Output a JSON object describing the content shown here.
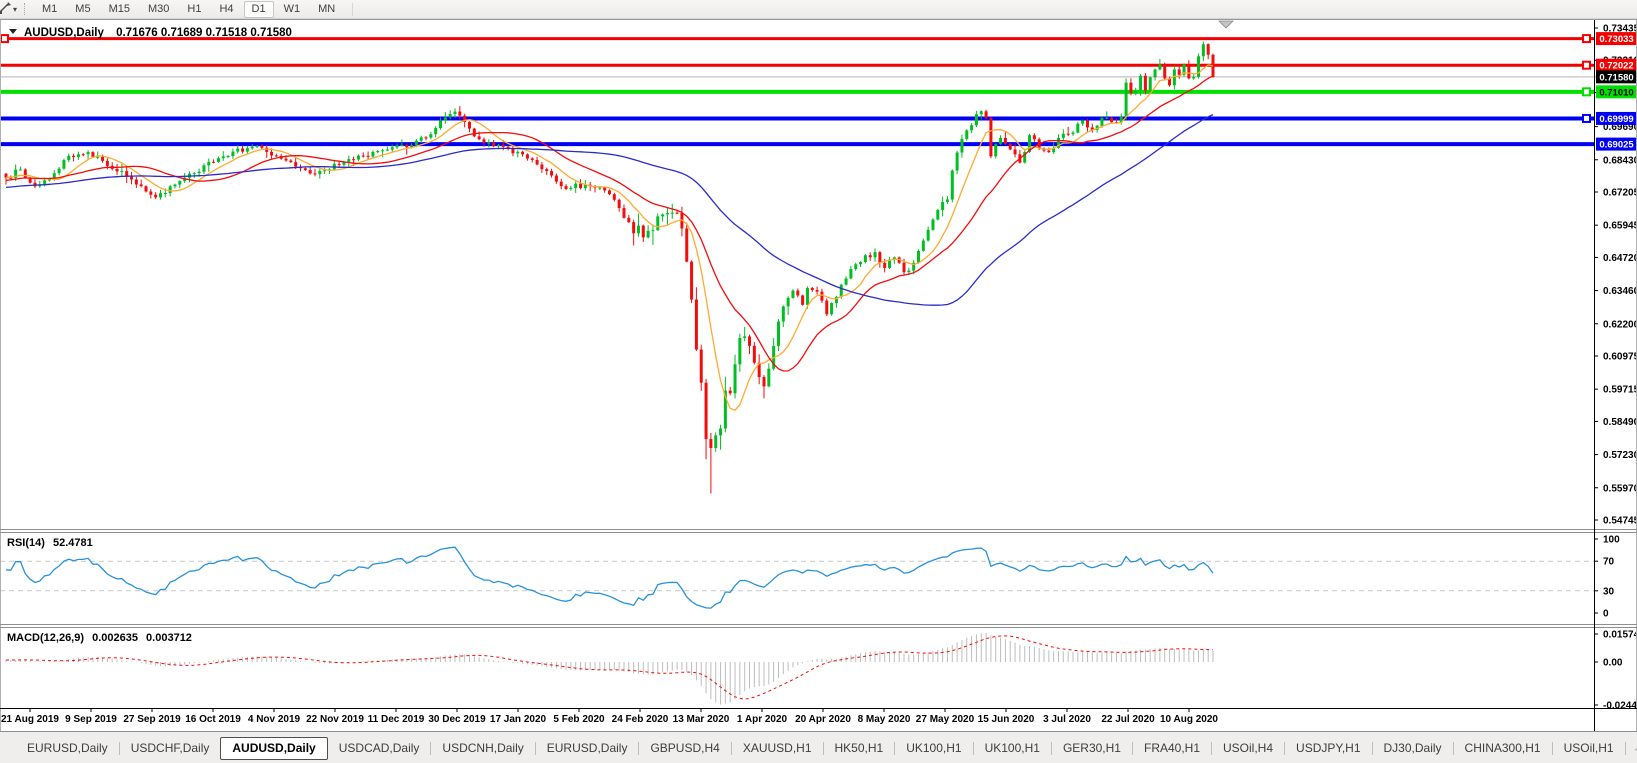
{
  "toolbar": {
    "left_icon": "line-tool-icon",
    "dropdown_caret": "▾",
    "timeframes": [
      "M1",
      "M5",
      "M15",
      "M30",
      "H1",
      "H4",
      "D1",
      "W1",
      "MN"
    ],
    "active_timeframe": "D1"
  },
  "chart_window": {
    "collapse_caret": "▼",
    "title": "AUDUSD,Daily",
    "ohlc_line": "0.71676 0.71689 0.71518 0.71580"
  },
  "chart_data": {
    "type": "candlestick",
    "symbol": "AUDUSD",
    "period": "Daily",
    "ohlc": {
      "open": "0.71676",
      "high": "0.71689",
      "low": "0.71518",
      "close": "0.71580"
    },
    "x_labels": [
      "21 Aug 2019",
      "9 Sep 2019",
      "27 Sep 2019",
      "16 Oct 2019",
      "4 Nov 2019",
      "22 Nov 2019",
      "11 Dec 2019",
      "30 Dec 2019",
      "17 Jan 2020",
      "5 Feb 2020",
      "24 Feb 2020",
      "13 Mar 2020",
      "1 Apr 2020",
      "20 Apr 2020",
      "8 May 2020",
      "27 May 2020",
      "15 Jun 2020",
      "3 Jul 2020",
      "22 Jul 2020",
      "10 Aug 2020"
    ],
    "y_ticks": [
      {
        "v": 0.73435,
        "label": "0.73435"
      },
      {
        "v": 0.7221,
        "label": "0.72210"
      },
      {
        "v": 0.70985,
        "label": "0.70985"
      },
      {
        "v": 0.6969,
        "label": "0.69690"
      },
      {
        "v": 0.6843,
        "label": "0.68430"
      },
      {
        "v": 0.67205,
        "label": "0.67205"
      },
      {
        "v": 0.65945,
        "label": "0.65945"
      },
      {
        "v": 0.6472,
        "label": "0.64720"
      },
      {
        "v": 0.6346,
        "label": "0.63460"
      },
      {
        "v": 0.622,
        "label": "0.62200"
      },
      {
        "v": 0.60975,
        "label": "0.60975"
      },
      {
        "v": 0.59715,
        "label": "0.59715"
      },
      {
        "v": 0.5849,
        "label": "0.58490"
      },
      {
        "v": 0.5723,
        "label": "0.57230"
      },
      {
        "v": 0.5597,
        "label": "0.55970"
      },
      {
        "v": 0.54745,
        "label": "0.54745"
      }
    ],
    "plot": {
      "price_top": 0.73701,
      "price_bottom": 0.54403
    },
    "levels": [
      {
        "price": 0.73033,
        "label": "0.73033",
        "color": "#f40000",
        "text_color": "#ffffff",
        "width": 3,
        "left_handle": true,
        "right_handle": true
      },
      {
        "price": 0.72022,
        "label": "0.72022",
        "color": "#f40000",
        "text_color": "#ffffff",
        "width": 3,
        "left_handle": false,
        "right_handle": true
      },
      {
        "price": 0.7101,
        "label": "0.71010",
        "color": "#00e000",
        "text_color": "#000000",
        "width": 4,
        "left_handle": false,
        "right_handle": true
      },
      {
        "price": 0.69999,
        "label": "0.69999",
        "color": "#0000f4",
        "text_color": "#ffffff",
        "width": 4,
        "left_handle": false,
        "right_handle": true
      },
      {
        "price": 0.69025,
        "label": "0.69025",
        "color": "#0000f4",
        "text_color": "#ffffff",
        "width": 4,
        "left_handle": false,
        "right_handle": false
      }
    ],
    "current_price": {
      "value": 0.7158,
      "label": "0.71580",
      "line_color": "#b4b4b4",
      "tag_bg": "#000000",
      "tag_text": "#ffffff"
    },
    "candles_count": 251,
    "candle_colors": {
      "up": "#00be23",
      "down": "#f20d0d"
    },
    "series_anchors": [
      [
        0,
        0.6775
      ],
      [
        3,
        0.6806
      ],
      [
        6,
        0.6742
      ],
      [
        9,
        0.6768
      ],
      [
        13,
        0.6858
      ],
      [
        17,
        0.6872
      ],
      [
        21,
        0.682
      ],
      [
        26,
        0.6768
      ],
      [
        31,
        0.67
      ],
      [
        36,
        0.6762
      ],
      [
        39,
        0.6792
      ],
      [
        45,
        0.6856
      ],
      [
        52,
        0.6896
      ],
      [
        58,
        0.684
      ],
      [
        64,
        0.6788
      ],
      [
        70,
        0.6836
      ],
      [
        77,
        0.6876
      ],
      [
        84,
        0.6898
      ],
      [
        88,
        0.694
      ],
      [
        91,
        0.7004
      ],
      [
        93,
        0.7026
      ],
      [
        97,
        0.6932
      ],
      [
        103,
        0.6892
      ],
      [
        108,
        0.6848
      ],
      [
        112,
        0.68
      ],
      [
        116,
        0.6732
      ],
      [
        120,
        0.6748
      ],
      [
        125,
        0.6712
      ],
      [
        129,
        0.6606
      ],
      [
        132,
        0.6548
      ],
      [
        135,
        0.6628
      ],
      [
        138,
        0.6642
      ],
      [
        140,
        0.6582
      ],
      [
        142,
        0.6312
      ],
      [
        143,
        0.6122
      ],
      [
        144,
        0.5996
      ],
      [
        145,
        0.5782
      ],
      [
        146,
        0.5748
      ],
      [
        147,
        0.5796
      ],
      [
        148,
        0.5822
      ],
      [
        149,
        0.5966
      ],
      [
        150,
        0.5956
      ],
      [
        151,
        0.6066
      ],
      [
        152,
        0.6166
      ],
      [
        153,
        0.6172
      ],
      [
        154,
        0.6136
      ],
      [
        155,
        0.6072
      ],
      [
        157,
        0.5982
      ],
      [
        159,
        0.6136
      ],
      [
        161,
        0.6286
      ],
      [
        163,
        0.6346
      ],
      [
        165,
        0.6292
      ],
      [
        166,
        0.6356
      ],
      [
        168,
        0.6342
      ],
      [
        170,
        0.6256
      ],
      [
        172,
        0.6322
      ],
      [
        174,
        0.6392
      ],
      [
        176,
        0.6446
      ],
      [
        180,
        0.6492
      ],
      [
        182,
        0.6432
      ],
      [
        184,
        0.6472
      ],
      [
        186,
        0.6416
      ],
      [
        188,
        0.6452
      ],
      [
        190,
        0.6536
      ],
      [
        192,
        0.6616
      ],
      [
        193,
        0.6652
      ],
      [
        195,
        0.6692
      ],
      [
        196,
        0.6802
      ],
      [
        198,
        0.6922
      ],
      [
        201,
        0.7016
      ],
      [
        203,
        0.7002
      ],
      [
        204,
        0.6856
      ],
      [
        206,
        0.6926
      ],
      [
        208,
        0.6882
      ],
      [
        210,
        0.6832
      ],
      [
        212,
        0.6936
      ],
      [
        214,
        0.6886
      ],
      [
        216,
        0.6872
      ],
      [
        218,
        0.6926
      ],
      [
        219,
        0.6942
      ],
      [
        221,
        0.6946
      ],
      [
        223,
        0.6992
      ],
      [
        225,
        0.6956
      ],
      [
        227,
        0.7002
      ],
      [
        229,
        0.6986
      ],
      [
        231,
        0.7006
      ],
      [
        232,
        0.7136
      ],
      [
        233,
        0.7096
      ],
      [
        234,
        0.7106
      ],
      [
        235,
        0.7162
      ],
      [
        236,
        0.7106
      ],
      [
        237,
        0.7156
      ],
      [
        238,
        0.7186
      ],
      [
        239,
        0.7206
      ],
      [
        240,
        0.7152
      ],
      [
        241,
        0.7126
      ],
      [
        242,
        0.7186
      ],
      [
        243,
        0.7166
      ],
      [
        244,
        0.7206
      ],
      [
        245,
        0.7152
      ],
      [
        246,
        0.7158
      ],
      [
        247,
        0.7236
      ],
      [
        248,
        0.7282
      ],
      [
        249,
        0.7242
      ],
      [
        250,
        0.7158
      ]
    ],
    "volatility_zones": [
      [
        128,
        163,
        2.4
      ],
      [
        196,
        205,
        1.4
      ]
    ],
    "wick_overrides": [
      {
        "day": 145,
        "low": 0.5705
      },
      {
        "day": 146,
        "low": 0.5575
      },
      {
        "day": 248,
        "high": 0.7292
      }
    ],
    "history_pad": {
      "bars": 60,
      "from": 0.669
    },
    "moving_averages": [
      {
        "name": "ma-fast",
        "period": 8,
        "color": "#ffaa30"
      },
      {
        "name": "ma-mid",
        "period": 20,
        "color": "#f20d0d"
      },
      {
        "name": "ma-slow",
        "period": 55,
        "color": "#2b2bcb"
      }
    ],
    "rsi": {
      "label": "RSI(14)",
      "display_value": "52.4781",
      "period": 14,
      "color": "#2792dc",
      "level_line_color": "#c9c9c9",
      "levels": [
        70,
        30
      ],
      "scale": [
        {
          "v": 100,
          "label": "100"
        },
        {
          "v": 70,
          "label": "70"
        },
        {
          "v": 30,
          "label": "30"
        },
        {
          "v": 0,
          "label": "0"
        }
      ]
    },
    "macd": {
      "label": "MACD(12,26,9)",
      "display_main": "0.002635",
      "display_signal": "0.003712",
      "fast": 12,
      "slow": 26,
      "signal": 9,
      "hist_color": "#bdbdbd",
      "signal_color": "#f20d0d",
      "scale": [
        {
          "v": 0.015741,
          "label": "0.015741"
        },
        {
          "v": 0,
          "label": "0.00"
        },
        {
          "v": -0.02441,
          "label": "-0.02441"
        }
      ]
    },
    "shift_marker_x": 1226
  },
  "tab_bar": {
    "tabs": [
      "EURUSD,Daily",
      "USDCHF,Daily",
      "AUDUSD,Daily",
      "USDCAD,Daily",
      "USDCNH,Daily",
      "EURUSD,Daily",
      "GBPUSD,H4",
      "XAUUSD,H1",
      "HK50,H1",
      "UK100,H1",
      "UK100,H1",
      "GER30,H1",
      "FRA40,H1",
      "USOil,H4",
      "USDJPY,H1",
      "DJ30,Daily",
      "CHINA300,H1",
      "USOil,H1"
    ],
    "active_tab_index": 2,
    "scroll_left": "◄",
    "scroll_right": "►"
  }
}
